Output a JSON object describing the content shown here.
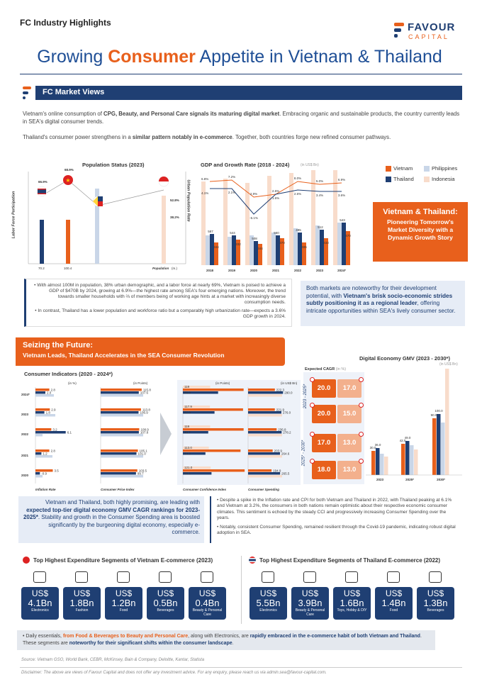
{
  "header": {
    "brand_top": "FC Industry Highlights",
    "logo_name": "FAVOUR",
    "logo_sub": "CAPITAL",
    "title_pre": "Growing ",
    "title_hl": "Consumer",
    "title_post": " Appetite in Vietnam & Thailand"
  },
  "market_views": {
    "title": "FC Market Views",
    "p1_a": "Vietnam's online consumption of ",
    "p1_b": "CPG, Beauty, and Personal Care signals its maturing digital market",
    "p1_c": ". Embracing organic and sustainable products, the country currently leads in SEA's digital consumer trends.",
    "p2_a": "Thailand's consumer power strengthens in a ",
    "p2_b": "similar pattern notably in e-commerce",
    "p2_c": ". Together, both countries forge new refined consumer pathways."
  },
  "legend": {
    "vietnam": "Vietnam",
    "thailand": "Thailand",
    "philippines": "Philippines",
    "indonesia": "Indonesia",
    "c_vn": "#e8601c",
    "c_th": "#1f3f73",
    "c_ph": "#c9d6e8",
    "c_id": "#f8dccb"
  },
  "population_chart": {
    "title": "Population Status (2023)",
    "ylabel_left": "Labor Force Participation",
    "ylabel_right": "Urban Population Rate",
    "xlabel": "Population",
    "xunit": "(m.)",
    "labor": {
      "th": "66.9%",
      "vn": "68.9%"
    },
    "urban": {
      "id": "52.8%",
      "ph": "38.2%"
    },
    "population": {
      "th": "70.2",
      "vn": "100.4"
    }
  },
  "gdp_chart": {
    "title": "GDP and Growth Rate (2018 - 2024)",
    "unit": "(in US$ Bn)",
    "years": [
      "2018",
      "2019",
      "2020",
      "2021",
      "2022",
      "2023",
      "2024*"
    ],
    "vn_growth": [
      "7.1%",
      "7.2%",
      "2.9%",
      "2.6%",
      "8.0%",
      "5.0%",
      "6.9%"
    ],
    "th_growth": [
      "4.2%",
      "2.1%",
      "-6.1%",
      "1.6%",
      "2.6%",
      "3.4%",
      "3.6%"
    ],
    "top_left": "6.8%",
    "left_label": "4.1%",
    "id_labels": [
      "587",
      "544",
      "508",
      "560",
      "495",
      "512",
      "543"
    ],
    "ph_labels": [
      "344",
      "332",
      "344",
      "370",
      "406",
      "433",
      "470"
    ]
  },
  "promo": {
    "title": "Vietnam & Thailand:",
    "body": "Pioneering Tomorrow's Market Diversity with a Dynamic Growth Story"
  },
  "note_box": {
    "b1": "With almost 100M in population, 38% urban demographic, and a labor force at nearly 69%, Vietnam is poised to achieve a GDP of $470B by 2024, growing at 6.9%—the highest rate among SEA's four emerging nations. Moreover, the trend towards smaller households with ⅔ of members being of working age hints at a market with increasingly diverse consumption needs.",
    "b2": "In contrast, Thailand has a lower population and workforce ratio but a comparably high urbanization rate—expects a 3.6% GDP growth in 2024."
  },
  "note_right": {
    "a": "Both markets are noteworthy for their development potential, with ",
    "b": "Vietnam's brisk socio-economic strides subtly positioning it as a regional leader",
    "c": ", offering intricate opportunities within SEA's lively consumer sector."
  },
  "seizing": {
    "title": "Seizing the Future:",
    "subtitle": "Vietnam Leads, Thailand Accelerates in the SEA Consumer Revolution"
  },
  "consumer_indicators": {
    "title": "Consumer Indicators (2020 - 2024*)",
    "years": [
      "2024*",
      "2023",
      "2022",
      "2021",
      "2020"
    ],
    "unit_pct": "(in %)",
    "unit_pts": "(in Points)",
    "unit_bn": "(in US$ Bn)",
    "inflation": {
      "label": "Inflation Rate",
      "vn": [
        "2.8",
        "2.9",
        "3.2",
        "2.8",
        "3.5"
      ],
      "th": [
        "2.0",
        "1.8",
        "6.1",
        "1.2",
        "-0.9"
      ]
    },
    "cpi": {
      "label": "Consumer Price Index",
      "vn": [
        "115.8",
        "113.8",
        "108.9",
        "105.1",
        "103.5"
      ],
      "th": [
        "107.6",
        "106.9",
        "107.8",
        "101.0",
        "99.7"
      ]
    },
    "cci": {
      "label": "Consumer Confidence Index",
      "vn": [
        "119",
        "117.9",
        "119",
        "113.0",
        "121.0"
      ],
      "th": [
        "69.0",
        "62.0",
        "49.7",
        "44.2",
        "56.1"
      ]
    },
    "spending": {
      "label": "Consumer Spending",
      "vn": [
        "222.3",
        "221.9",
        "236.8",
        "203.9",
        "194.9"
      ],
      "th": [
        "290.0",
        "276.0",
        "278.2",
        "264.6",
        "265.5"
      ]
    }
  },
  "gmv": {
    "title": "Digital Economy GMV (2023 - 2030*)",
    "unit": "(in US$ Bn)",
    "cagr_label": "Expected CAGR",
    "cagr_unit": "(in %)",
    "period1": "2023 - 2025*",
    "period2": "2025* - 2030*",
    "cagr_2025": {
      "vn": "20.0",
      "id": "17.0",
      "th": "20.0",
      "ph": "15.0"
    },
    "cagr_2030": {
      "th": "17.0",
      "id": "13.0",
      "ph": "18.0",
      "x": "13.0"
    },
    "years": [
      "2023",
      "2025*",
      "2030*"
    ],
    "labels": [
      "30.0",
      "36.0",
      "42.0",
      "49.0",
      "90.0",
      "100.0"
    ]
  },
  "gmv_note": {
    "a": "Vietnam and Thailand, both highly promising, are leading with ",
    "b": "expected top-tier digital economy GMV CAGR rankings for 2023-2025*",
    "c": ". Stability and growth in the Consumer Spending area is boosted significantly by the burgeoning digital economy, especially e-commerce."
  },
  "gmv_bullets": {
    "b1": "Despite a spike in the Inflation rate and CPI for both Vietnam and Thailand in 2022, with Thailand peaking at 6.1% and Vietnam at 3.2%, the consumers in both nations remain optimistic about their respective economic consumer climates. This sentiment is echoed by the steady CCI and progressively increasing Consumer Spending over the years.",
    "b2": "Notably, consistent Consumer Spending, remained resilient through the Covid-19 pandemic, indicating robust digital adoption in SEA."
  },
  "vn_segments": {
    "title": "Top Highest Expenditure Segments of Vietnam E-commerce (2023)",
    "items": [
      {
        "cur": "US$",
        "amt": "4.1Bn",
        "label": "Electronics"
      },
      {
        "cur": "US$",
        "amt": "1.8Bn",
        "label": "Fashion"
      },
      {
        "cur": "US$",
        "amt": "1.2Bn",
        "label": "Food"
      },
      {
        "cur": "US$",
        "amt": "0.5Bn",
        "label": "Beverages"
      },
      {
        "cur": "US$",
        "amt": "0.4Bn",
        "label": "Beauty & Personal Care"
      }
    ]
  },
  "th_segments": {
    "title": "Top Highest Expenditure Segments of Thailand E-commerce (2022)",
    "items": [
      {
        "cur": "US$",
        "amt": "5.5Bn",
        "label": "Electronics"
      },
      {
        "cur": "US$",
        "amt": "3.9Bn",
        "label": "Beauty & Personal Care"
      },
      {
        "cur": "US$",
        "amt": "1.6Bn",
        "label": "Toys, Hobby & DIY"
      },
      {
        "cur": "US$",
        "amt": "1.4Bn",
        "label": "Food"
      },
      {
        "cur": "US$",
        "amt": "1.3Bn",
        "label": "Beverages"
      }
    ]
  },
  "footer_note": {
    "a": "Daily essentials, ",
    "b": "from Food & Beverages to Beauty and Personal Care",
    "c": ", along with Electronics, are ",
    "d": "rapidly embraced in the e-commerce habit of both Vietnam and Thailand",
    "e": ". These segments are ",
    "f": "noteworthy for their significant shifts within the consumer landscape",
    "g": "."
  },
  "source": "Source: Vietnam GSO, World Bank, CEBR, McKinsey, Bain & Company, Deloitte, Kantar, Statista",
  "disclaimer": "Disclaimer: The above are views of Favour Capital and does not offer any investment advice. For any enquiry, please reach us via admin.sea@favour-capital.com."
}
